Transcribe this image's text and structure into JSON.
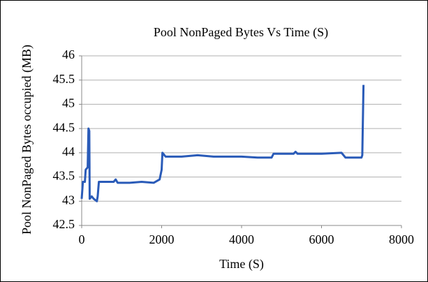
{
  "chart_data": {
    "type": "line",
    "title": "Pool NonPaged Bytes Vs Time (S)",
    "x_label": "Time (S)",
    "y_label": "Pool NonPaged Bytes occupied (MB)",
    "xlim": [
      0,
      8000
    ],
    "xticks": [
      0,
      2000,
      4000,
      6000,
      8000
    ],
    "ylim": [
      42.5,
      46
    ],
    "yticks": [
      42.5,
      43,
      43.5,
      44,
      44.5,
      45,
      45.5,
      46
    ],
    "grid": true,
    "series": [
      {
        "color": "#2a5bb8",
        "x": [
          0,
          30,
          80,
          100,
          150,
          170,
          190,
          200,
          250,
          300,
          380,
          400,
          430,
          600,
          800,
          850,
          900,
          1200,
          1500,
          1800,
          1950,
          2000,
          2020,
          2100,
          2500,
          2900,
          3300,
          3600,
          4000,
          4400,
          4750,
          4800,
          5300,
          5350,
          5400,
          6000,
          6500,
          6600,
          7000,
          7020,
          7050
        ],
        "values": [
          43.05,
          43.4,
          43.4,
          43.65,
          43.7,
          44.5,
          44.45,
          43.05,
          43.1,
          43.05,
          43.0,
          43.1,
          43.4,
          43.4,
          43.4,
          43.45,
          43.38,
          43.38,
          43.4,
          43.38,
          43.45,
          43.65,
          44.0,
          43.92,
          43.92,
          43.95,
          43.92,
          43.92,
          43.92,
          43.9,
          43.9,
          43.98,
          43.98,
          44.02,
          43.98,
          43.98,
          44.0,
          43.9,
          43.9,
          43.95,
          45.4
        ]
      }
    ]
  }
}
